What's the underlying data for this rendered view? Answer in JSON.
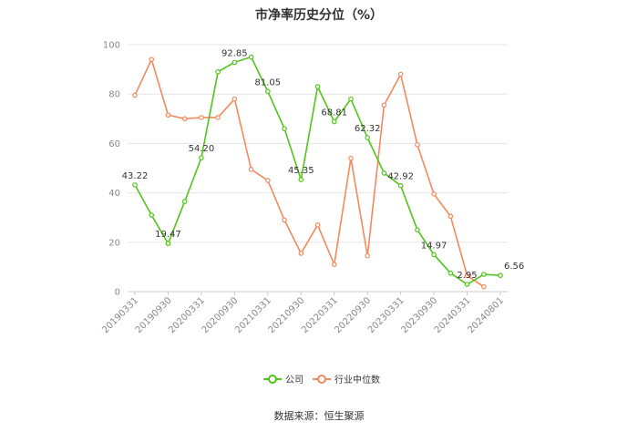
{
  "chart_title": "市净率历史分位（%）",
  "source": "数据来源：恒生聚源",
  "colors": {
    "company": "#52c41a",
    "industry": "#f4895f",
    "grid": "#e6e6e6",
    "axis": "#cccccc"
  },
  "chart_data": {
    "type": "line",
    "title": "市净率历史分位（%）",
    "ylim": [
      0,
      100
    ],
    "yticks": [
      0,
      20,
      40,
      60,
      80,
      100
    ],
    "grid": true,
    "legend": "bottom",
    "xtick_labels": [
      "20190331",
      "20190930",
      "20200331",
      "20200930",
      "20210331",
      "20210930",
      "20220331",
      "20220930",
      "20230331",
      "20230930",
      "20240331",
      "20240801"
    ],
    "xtick_index": [
      0,
      2,
      4,
      6,
      8,
      10,
      12,
      14,
      16,
      18,
      20,
      22
    ],
    "n_points": 23,
    "series": [
      {
        "name": "公司",
        "color": "#52c41a",
        "values": [
          43.22,
          31,
          19.47,
          36.5,
          54.2,
          89,
          92.85,
          95,
          81.05,
          66,
          45.35,
          83,
          68.81,
          78,
          62.32,
          48,
          42.92,
          25,
          14.97,
          7.5,
          2.95,
          7,
          6.56
        ],
        "labels": {
          "0": "43.22",
          "2": "19.47",
          "4": "54.20",
          "6": "92.85",
          "8": "81.05",
          "10": "45.35",
          "12": "68.81",
          "14": "62.32",
          "16": "42.92",
          "18": "14.97",
          "20": "2.95",
          "22": "6.56"
        }
      },
      {
        "name": "行业中位数",
        "color": "#f4895f",
        "values": [
          79.5,
          94,
          71.5,
          70,
          70.5,
          70.5,
          78,
          49.5,
          45,
          29,
          15.5,
          27,
          11,
          54,
          14.5,
          75.5,
          88,
          59.5,
          39.5,
          30.5,
          6.5,
          2,
          null
        ],
        "labels": {}
      }
    ]
  }
}
